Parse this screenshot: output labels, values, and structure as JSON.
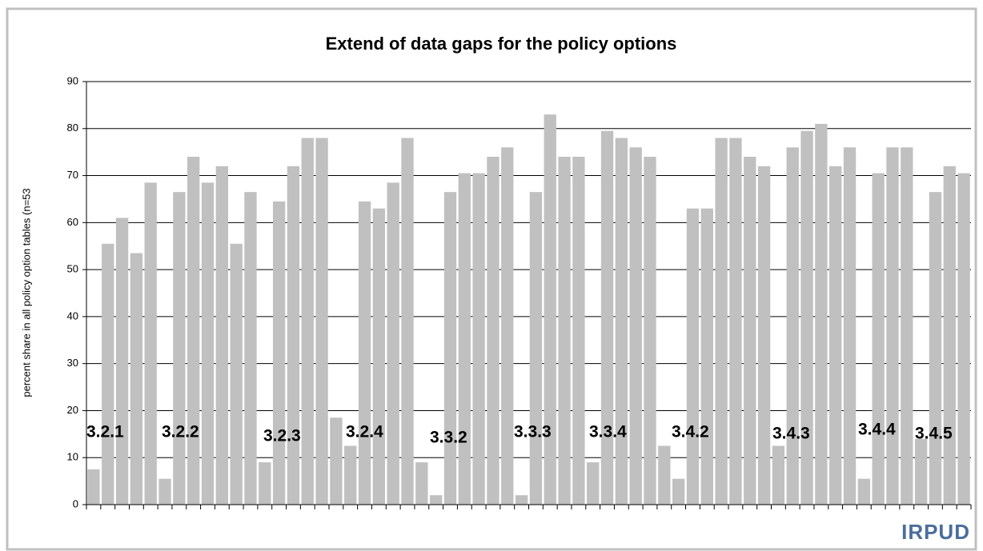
{
  "chart_data": {
    "type": "bar",
    "title": "Extend of data gaps for the policy options",
    "ylabel": "percent share in all policy option tables (n=53",
    "logo": "IRPUD",
    "color": "#c0c0c0",
    "grid": true,
    "ylim": [
      0,
      90
    ],
    "yticks": [
      0,
      10,
      20,
      30,
      40,
      50,
      60,
      70,
      80,
      90
    ],
    "categories": [
      null,
      null,
      null,
      null,
      null,
      null,
      null,
      null,
      null,
      null,
      null,
      null,
      null,
      null,
      null,
      null,
      null,
      null,
      null,
      null,
      null,
      null,
      null,
      null,
      null,
      null,
      null,
      null,
      null,
      null,
      null,
      null,
      null,
      null,
      null,
      null,
      null,
      null,
      null,
      null,
      null,
      null,
      null,
      null,
      null,
      null,
      null,
      null,
      null,
      null,
      null,
      null,
      null,
      null,
      null,
      null,
      null,
      null,
      null,
      null,
      null,
      null
    ],
    "values": [
      7.5,
      55.5,
      61,
      53.5,
      68.5,
      5.5,
      66.5,
      74,
      68.5,
      72,
      55.5,
      66.5,
      9,
      64.5,
      72,
      78,
      78,
      18.5,
      12.5,
      64.5,
      63,
      68.5,
      78,
      9,
      2,
      66.5,
      70.5,
      70.5,
      74,
      76,
      2,
      66.5,
      83,
      74,
      74,
      9,
      79.5,
      78,
      76,
      74,
      12.5,
      5.5,
      63,
      63,
      78,
      78,
      74,
      72,
      12.5,
      76,
      79.5,
      81,
      72,
      76,
      5.5,
      70.5,
      76,
      76,
      14,
      66.5,
      72,
      70.5
    ],
    "annotations": [
      "3.2.1",
      "3.2.2",
      "3.2.3",
      "3.2.4",
      "3.3.2",
      "3.3.3",
      "3.3.4",
      "3.4.2",
      "3.4.3",
      "3.4.4",
      "3.4.5"
    ]
  }
}
